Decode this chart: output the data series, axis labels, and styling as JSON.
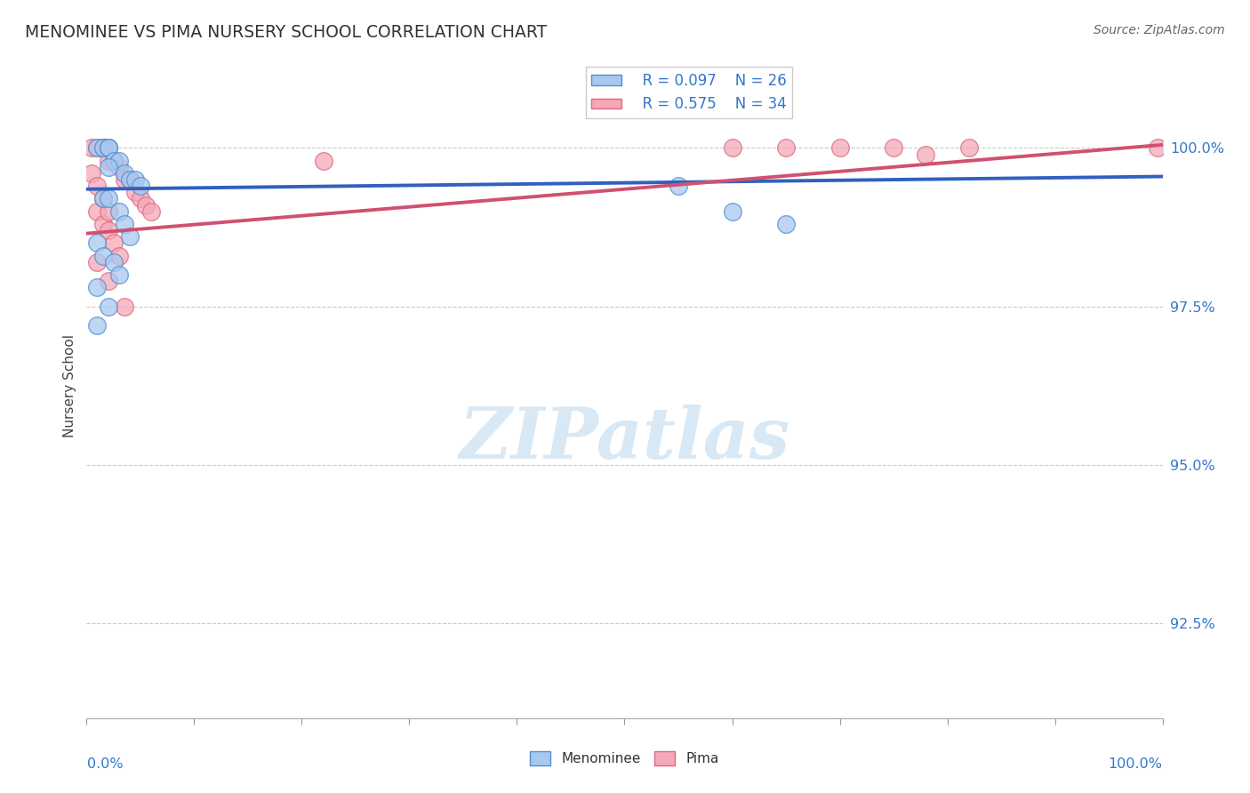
{
  "title": "MENOMINEE VS PIMA NURSERY SCHOOL CORRELATION CHART",
  "source": "Source: ZipAtlas.com",
  "ylabel": "Nursery School",
  "yticks": [
    92.5,
    95.0,
    97.5,
    100.0
  ],
  "ytick_labels": [
    "92.5%",
    "95.0%",
    "97.5%",
    "100.0%"
  ],
  "xrange": [
    0.0,
    100.0
  ],
  "yrange": [
    91.0,
    101.5
  ],
  "legend_R_blue": "R = 0.097",
  "legend_N_blue": "N = 26",
  "legend_R_pink": "R = 0.575",
  "legend_N_pink": "N = 34",
  "blue_fill": "#A8C8F0",
  "pink_fill": "#F4A8B8",
  "blue_edge": "#5090D0",
  "pink_edge": "#E06880",
  "blue_line": "#3060C0",
  "pink_line": "#D05070",
  "watermark_color": "#D8E8F5",
  "menominee_x": [
    1.0,
    1.5,
    2.0,
    2.0,
    2.5,
    3.0,
    3.5,
    4.0,
    4.5,
    5.0,
    1.5,
    2.0,
    3.0,
    3.5,
    4.0,
    1.0,
    1.5,
    2.5,
    3.0,
    2.0,
    1.0,
    2.0,
    1.0,
    55.0,
    60.0,
    65.0
  ],
  "menominee_y": [
    100.0,
    100.0,
    100.0,
    100.0,
    99.8,
    99.8,
    99.6,
    99.5,
    99.5,
    99.4,
    99.2,
    99.2,
    99.0,
    98.8,
    98.6,
    98.5,
    98.3,
    98.2,
    98.0,
    99.7,
    97.8,
    97.5,
    97.2,
    99.4,
    99.0,
    98.8
  ],
  "pima_x": [
    0.5,
    1.0,
    1.5,
    1.5,
    2.0,
    2.0,
    2.5,
    3.0,
    3.5,
    4.0,
    4.5,
    5.0,
    5.5,
    6.0,
    1.0,
    1.5,
    2.0,
    2.5,
    3.0,
    0.5,
    1.0,
    1.5,
    2.0,
    1.0,
    2.0,
    3.5,
    22.0,
    60.0,
    65.0,
    70.0,
    75.0,
    78.0,
    82.0,
    99.5
  ],
  "pima_y": [
    100.0,
    100.0,
    100.0,
    100.0,
    100.0,
    99.8,
    99.8,
    99.7,
    99.5,
    99.5,
    99.3,
    99.2,
    99.1,
    99.0,
    99.0,
    98.8,
    98.7,
    98.5,
    98.3,
    99.6,
    99.4,
    99.2,
    99.0,
    98.2,
    97.9,
    97.5,
    99.8,
    100.0,
    100.0,
    100.0,
    100.0,
    99.9,
    100.0,
    100.0
  ],
  "blue_line_x0": 0.0,
  "blue_line_y0": 99.35,
  "blue_line_x1": 100.0,
  "blue_line_y1": 99.55,
  "pink_line_x0": 0.0,
  "pink_line_y0": 98.65,
  "pink_line_x1": 100.0,
  "pink_line_y1": 100.05
}
